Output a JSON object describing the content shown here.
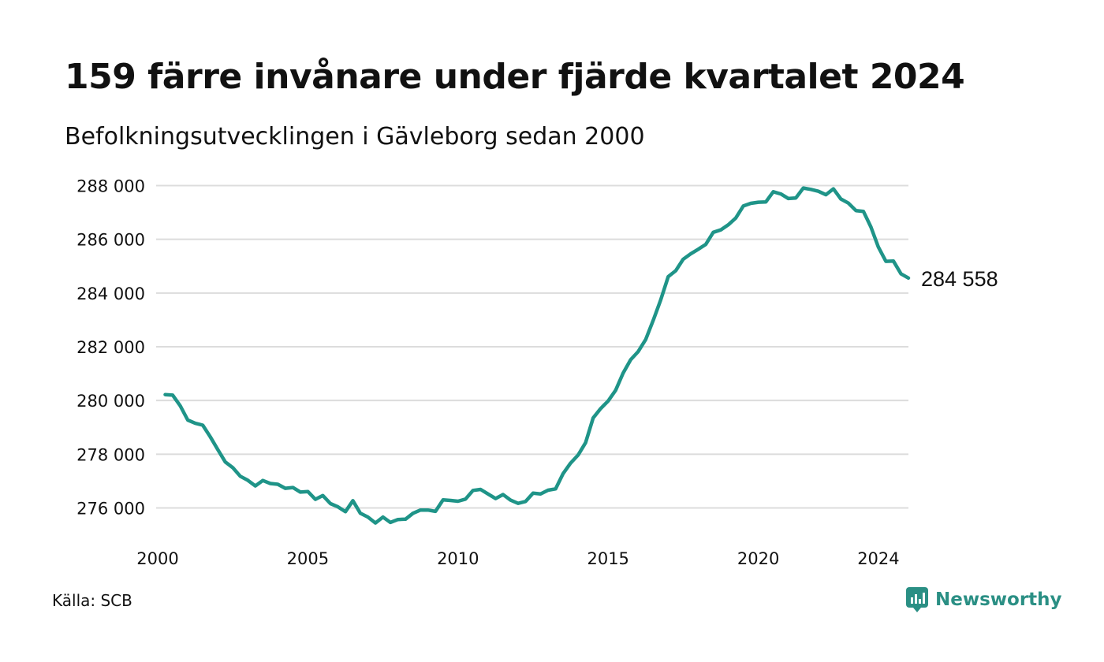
{
  "title": "159 färre invånare under fjärde kvartalet 2024",
  "subtitle": "Befolkningsutvecklingen i Gävleborg sedan 2000",
  "source": "Källa: SCB",
  "brand": {
    "name": "Newsworthy",
    "icon": "newsworthy-logo-icon",
    "color": "#2a8f84"
  },
  "chart_data": {
    "type": "line",
    "title": "159 färre invånare under fjärde kvartalet 2024",
    "subtitle": "Befolkningsutvecklingen i Gävleborg sedan 2000",
    "xlabel": "",
    "ylabel": "",
    "xlim": [
      2000,
      2025
    ],
    "ylim": [
      275000,
      288500
    ],
    "x_ticks": [
      2000,
      2005,
      2010,
      2015,
      2020,
      2024
    ],
    "x_tick_labels": [
      "2000",
      "2005",
      "2010",
      "2015",
      "2020",
      "2024"
    ],
    "y_ticks": [
      276000,
      278000,
      280000,
      282000,
      284000,
      286000,
      288000
    ],
    "y_tick_labels": [
      "276 000",
      "278 000",
      "280 000",
      "282 000",
      "284 000",
      "286 000",
      "288 000"
    ],
    "grid": "horizontal",
    "line_color": "#1f9488",
    "end_label": "284 558",
    "series": [
      {
        "values": [
          {
            "x": 2000.25,
            "y": 280220
          },
          {
            "x": 2000.5,
            "y": 280200
          },
          {
            "x": 2000.75,
            "y": 279800
          },
          {
            "x": 2001.0,
            "y": 279270
          },
          {
            "x": 2001.25,
            "y": 279150
          },
          {
            "x": 2001.5,
            "y": 279080
          },
          {
            "x": 2001.75,
            "y": 278650
          },
          {
            "x": 2002.0,
            "y": 278170
          },
          {
            "x": 2002.25,
            "y": 277710
          },
          {
            "x": 2002.5,
            "y": 277500
          },
          {
            "x": 2002.75,
            "y": 277180
          },
          {
            "x": 2003.0,
            "y": 277030
          },
          {
            "x": 2003.25,
            "y": 276820
          },
          {
            "x": 2003.5,
            "y": 277020
          },
          {
            "x": 2003.75,
            "y": 276910
          },
          {
            "x": 2004.0,
            "y": 276880
          },
          {
            "x": 2004.25,
            "y": 276730
          },
          {
            "x": 2004.5,
            "y": 276760
          },
          {
            "x": 2004.75,
            "y": 276590
          },
          {
            "x": 2005.0,
            "y": 276610
          },
          {
            "x": 2005.25,
            "y": 276320
          },
          {
            "x": 2005.5,
            "y": 276460
          },
          {
            "x": 2005.75,
            "y": 276160
          },
          {
            "x": 2006.0,
            "y": 276040
          },
          {
            "x": 2006.25,
            "y": 275860
          },
          {
            "x": 2006.5,
            "y": 276270
          },
          {
            "x": 2006.75,
            "y": 275800
          },
          {
            "x": 2007.0,
            "y": 275660
          },
          {
            "x": 2007.25,
            "y": 275440
          },
          {
            "x": 2007.5,
            "y": 275660
          },
          {
            "x": 2007.75,
            "y": 275460
          },
          {
            "x": 2008.0,
            "y": 275570
          },
          {
            "x": 2008.25,
            "y": 275580
          },
          {
            "x": 2008.5,
            "y": 275800
          },
          {
            "x": 2008.75,
            "y": 275920
          },
          {
            "x": 2009.0,
            "y": 275920
          },
          {
            "x": 2009.25,
            "y": 275870
          },
          {
            "x": 2009.5,
            "y": 276300
          },
          {
            "x": 2009.75,
            "y": 276280
          },
          {
            "x": 2010.0,
            "y": 276250
          },
          {
            "x": 2010.25,
            "y": 276330
          },
          {
            "x": 2010.5,
            "y": 276650
          },
          {
            "x": 2010.75,
            "y": 276690
          },
          {
            "x": 2011.0,
            "y": 276520
          },
          {
            "x": 2011.25,
            "y": 276350
          },
          {
            "x": 2011.5,
            "y": 276500
          },
          {
            "x": 2011.75,
            "y": 276290
          },
          {
            "x": 2012.0,
            "y": 276170
          },
          {
            "x": 2012.25,
            "y": 276240
          },
          {
            "x": 2012.5,
            "y": 276550
          },
          {
            "x": 2012.75,
            "y": 276520
          },
          {
            "x": 2013.0,
            "y": 276660
          },
          {
            "x": 2013.25,
            "y": 276710
          },
          {
            "x": 2013.5,
            "y": 277280
          },
          {
            "x": 2013.75,
            "y": 277670
          },
          {
            "x": 2014.0,
            "y": 277970
          },
          {
            "x": 2014.25,
            "y": 278430
          },
          {
            "x": 2014.5,
            "y": 279350
          },
          {
            "x": 2014.75,
            "y": 279700
          },
          {
            "x": 2015.0,
            "y": 279980
          },
          {
            "x": 2015.25,
            "y": 280380
          },
          {
            "x": 2015.5,
            "y": 281020
          },
          {
            "x": 2015.75,
            "y": 281520
          },
          {
            "x": 2016.0,
            "y": 281820
          },
          {
            "x": 2016.25,
            "y": 282270
          },
          {
            "x": 2016.5,
            "y": 282980
          },
          {
            "x": 2016.75,
            "y": 283740
          },
          {
            "x": 2017.0,
            "y": 284610
          },
          {
            "x": 2017.25,
            "y": 284830
          },
          {
            "x": 2017.5,
            "y": 285260
          },
          {
            "x": 2017.75,
            "y": 285460
          },
          {
            "x": 2018.0,
            "y": 285630
          },
          {
            "x": 2018.25,
            "y": 285810
          },
          {
            "x": 2018.5,
            "y": 286260
          },
          {
            "x": 2018.75,
            "y": 286350
          },
          {
            "x": 2019.0,
            "y": 286540
          },
          {
            "x": 2019.25,
            "y": 286790
          },
          {
            "x": 2019.5,
            "y": 287240
          },
          {
            "x": 2019.75,
            "y": 287340
          },
          {
            "x": 2020.0,
            "y": 287380
          },
          {
            "x": 2020.25,
            "y": 287390
          },
          {
            "x": 2020.5,
            "y": 287770
          },
          {
            "x": 2020.75,
            "y": 287690
          },
          {
            "x": 2021.0,
            "y": 287520
          },
          {
            "x": 2021.25,
            "y": 287540
          },
          {
            "x": 2021.5,
            "y": 287910
          },
          {
            "x": 2021.75,
            "y": 287860
          },
          {
            "x": 2022.0,
            "y": 287790
          },
          {
            "x": 2022.25,
            "y": 287660
          },
          {
            "x": 2022.5,
            "y": 287880
          },
          {
            "x": 2022.75,
            "y": 287500
          },
          {
            "x": 2023.0,
            "y": 287350
          },
          {
            "x": 2023.25,
            "y": 287070
          },
          {
            "x": 2023.5,
            "y": 287040
          },
          {
            "x": 2023.75,
            "y": 286460
          },
          {
            "x": 2024.0,
            "y": 285710
          },
          {
            "x": 2024.25,
            "y": 285180
          },
          {
            "x": 2024.5,
            "y": 285190
          },
          {
            "x": 2024.75,
            "y": 284717
          },
          {
            "x": 2025.0,
            "y": 284558
          }
        ]
      }
    ]
  }
}
